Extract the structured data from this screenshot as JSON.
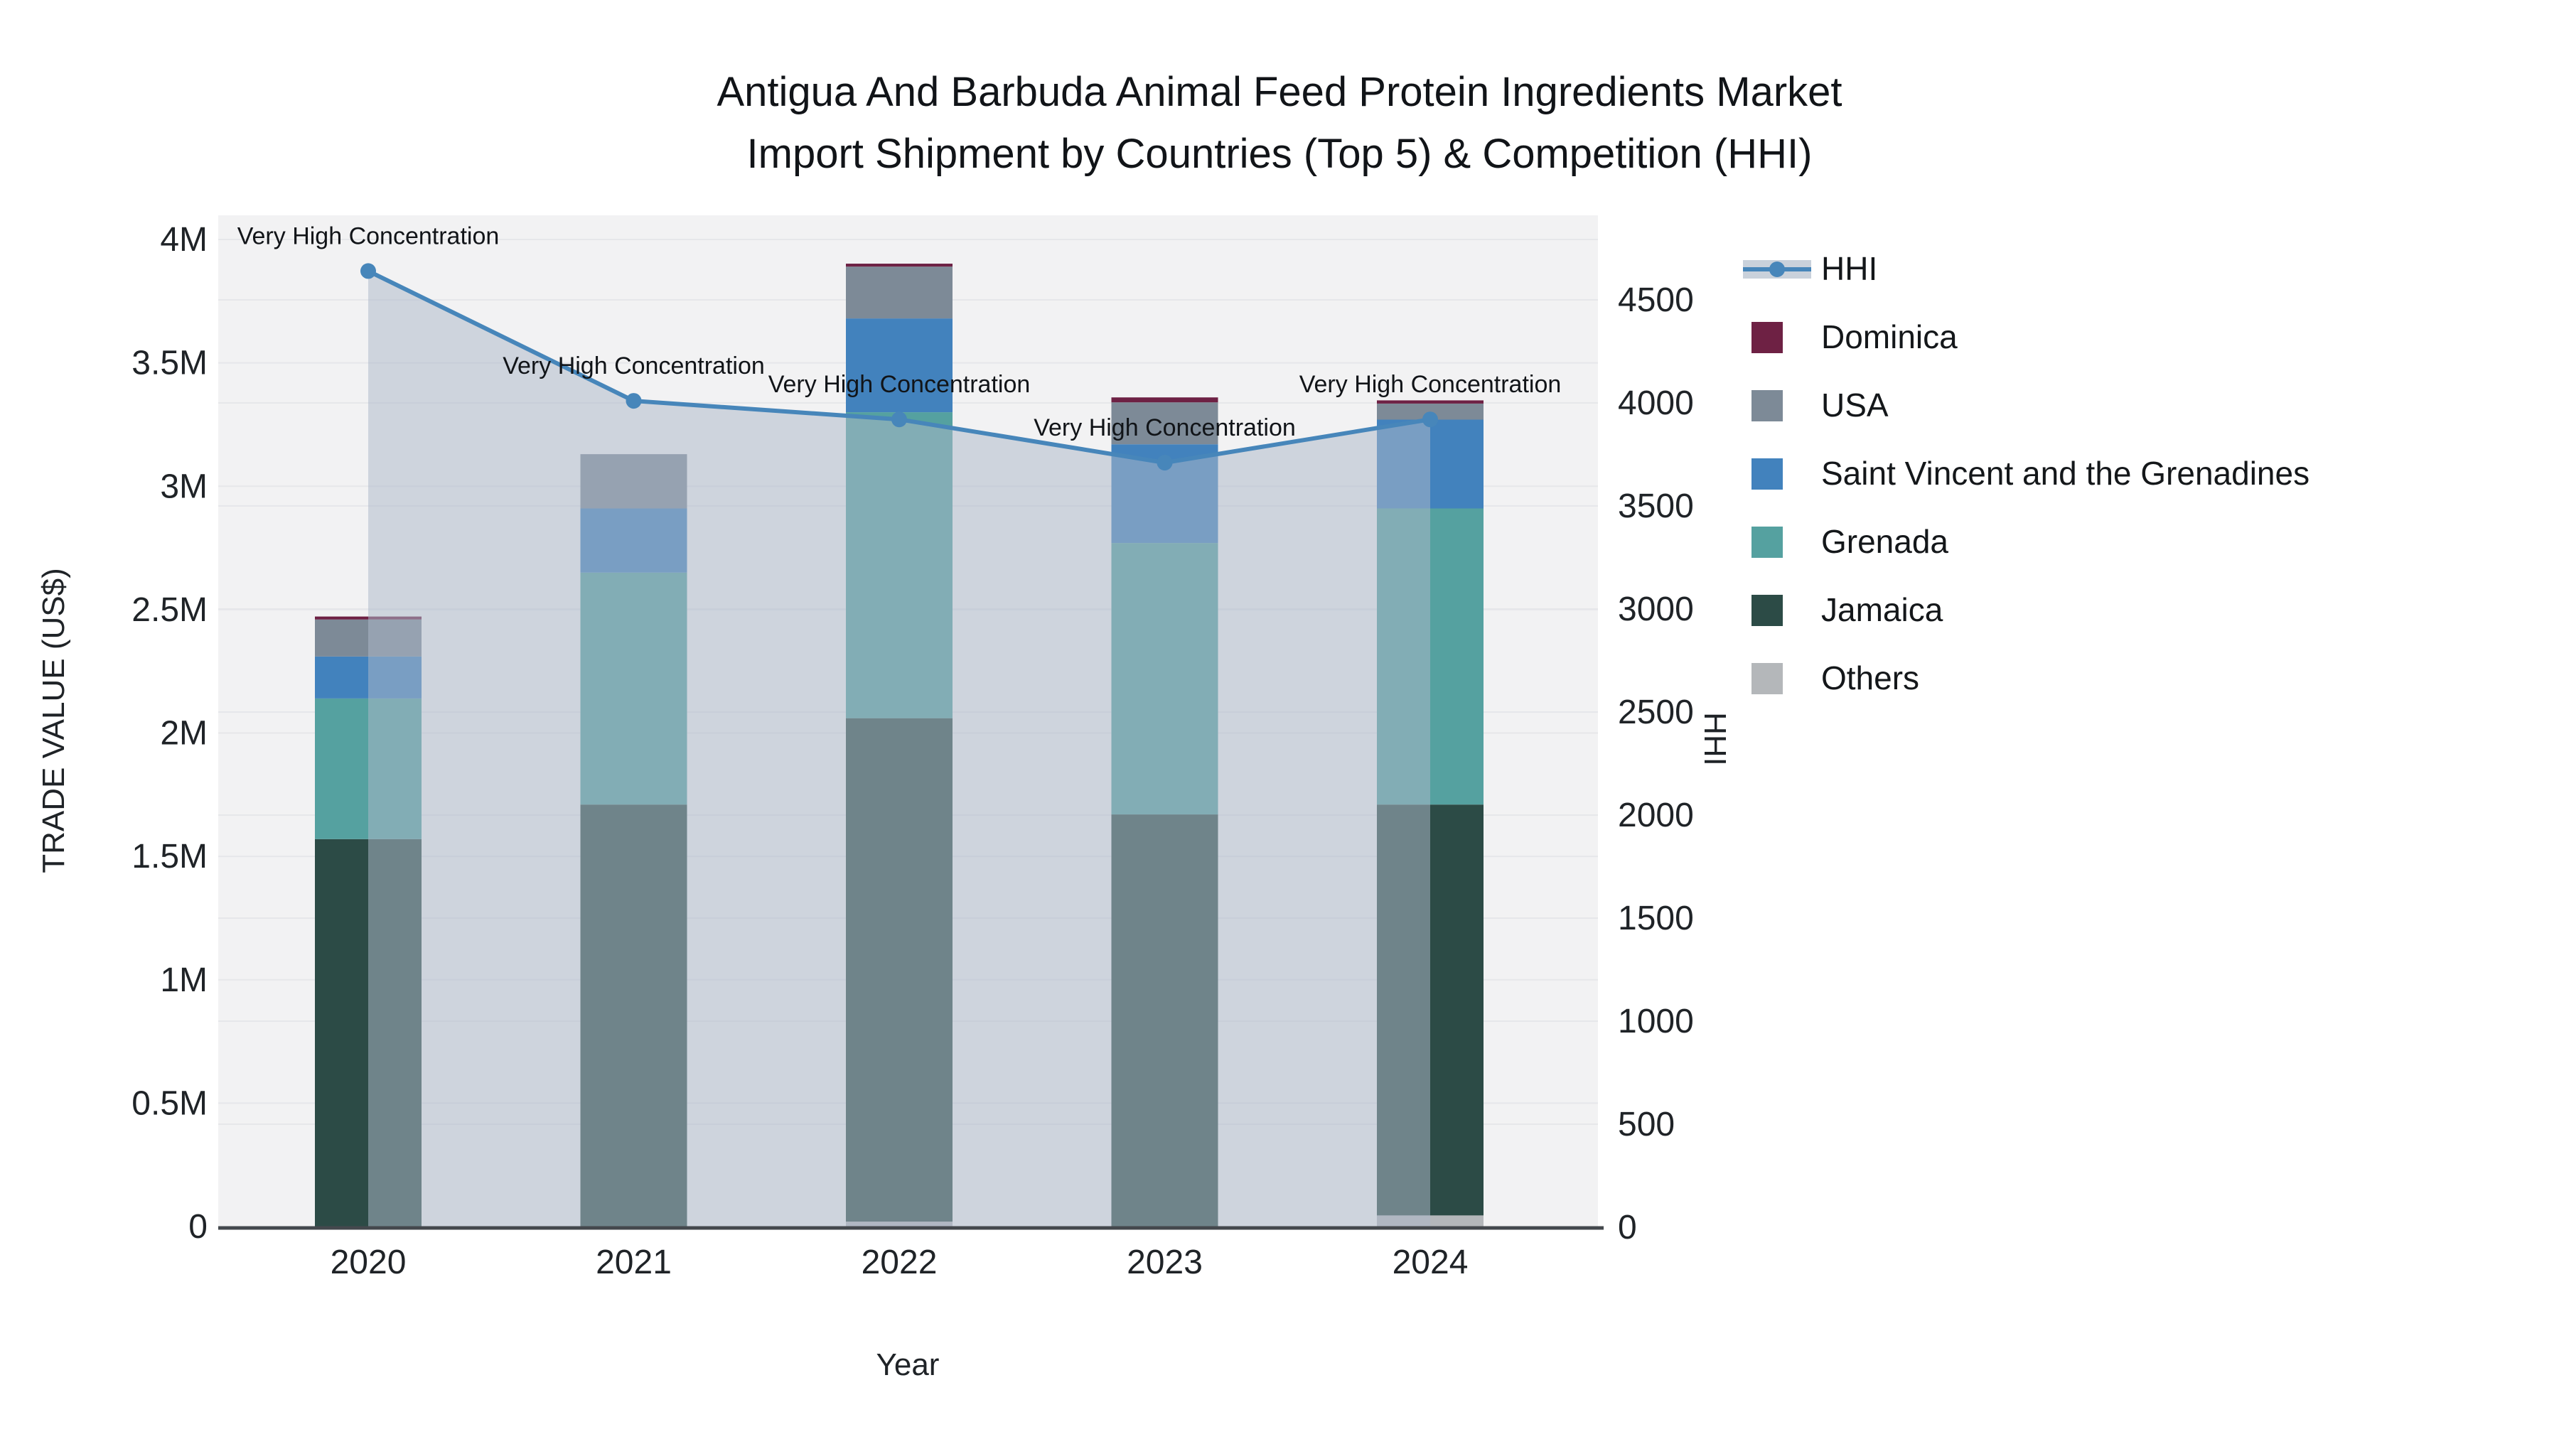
{
  "title": {
    "line1": "Antigua And Barbuda Animal Feed Protein Ingredients Market",
    "line2": "Import Shipment by Countries (Top 5) & Competition (HHI)"
  },
  "axes": {
    "x_title": "Year",
    "left_title": "TRADE VALUE (US$)",
    "right_title": "HHI",
    "left_ticks": [
      {
        "label": "0",
        "value": 0
      },
      {
        "label": "0.5M",
        "value": 0.5
      },
      {
        "label": "1M",
        "value": 1
      },
      {
        "label": "1.5M",
        "value": 1.5
      },
      {
        "label": "2M",
        "value": 2
      },
      {
        "label": "2.5M",
        "value": 2.5
      },
      {
        "label": "3M",
        "value": 3
      },
      {
        "label": "3.5M",
        "value": 3.5
      },
      {
        "label": "4M",
        "value": 4
      }
    ],
    "right_ticks": [
      0,
      500,
      1000,
      1500,
      2000,
      2500,
      3000,
      3500,
      4000,
      4500
    ]
  },
  "chart_data": {
    "type": "stacked-bar+line",
    "categories": [
      "2020",
      "2021",
      "2022",
      "2023",
      "2024"
    ],
    "value_unit": "M US$",
    "series": [
      {
        "name": "Others",
        "color": "#b4b7ba",
        "values_musd": [
          0,
          0,
          0.02,
          0,
          0.045
        ]
      },
      {
        "name": "Jamaica",
        "color": "#2c4b46",
        "values_musd": [
          1.57,
          1.71,
          2.04,
          1.67,
          1.665
        ]
      },
      {
        "name": "Grenada",
        "color": "#55a1a0",
        "values_musd": [
          0.57,
          0.94,
          1.24,
          1.1,
          1.2
        ]
      },
      {
        "name": "Saint Vincent and the Grenadines",
        "color": "#4282bd",
        "values_musd": [
          0.17,
          0.26,
          0.38,
          0.4,
          0.36
        ]
      },
      {
        "name": "USA",
        "color": "#7d8a97",
        "values_musd": [
          0.15,
          0.22,
          0.21,
          0.17,
          0.065
        ]
      },
      {
        "name": "Dominica",
        "color": "#6e2144",
        "values_musd": [
          0.012,
          0,
          0.012,
          0.02,
          0.013
        ]
      }
    ],
    "hhi": {
      "name": "HHI",
      "color": "#4786ba",
      "area_fill": "rgba(173,185,202,0.52)",
      "values": [
        4640,
        4010,
        3920,
        3710,
        3920
      ]
    },
    "annotations": [
      "Very High Concentration",
      "Very High Concentration",
      "Very High Concentration",
      "Very High Concentration",
      "Very High Concentration"
    ],
    "ylabel_left": "TRADE VALUE (US$)",
    "ylabel_right": "HHI",
    "xlabel": "Year",
    "ylim_left_musd": [
      0,
      4
    ],
    "ylim_right": [
      0,
      4790
    ],
    "grid": true,
    "legend_position": "right"
  },
  "legend": {
    "items": [
      {
        "label": "HHI",
        "type": "line",
        "color": "#4786ba",
        "band": "#c9d1db"
      },
      {
        "label": "Dominica",
        "type": "swatch",
        "color": "#6e2144"
      },
      {
        "label": "USA",
        "type": "swatch",
        "color": "#7d8a97"
      },
      {
        "label": "Saint Vincent and the Grenadines",
        "type": "swatch",
        "color": "#4282bd"
      },
      {
        "label": "Grenada",
        "type": "swatch",
        "color": "#55a1a0"
      },
      {
        "label": "Jamaica",
        "type": "swatch",
        "color": "#2c4b46"
      },
      {
        "label": "Others",
        "type": "swatch",
        "color": "#b4b7ba"
      }
    ]
  },
  "colors": {
    "plot_bg": "#f2f2f3",
    "grid": "#e6e7ea",
    "axis_line": "#44484d",
    "text": "#1f2327"
  }
}
